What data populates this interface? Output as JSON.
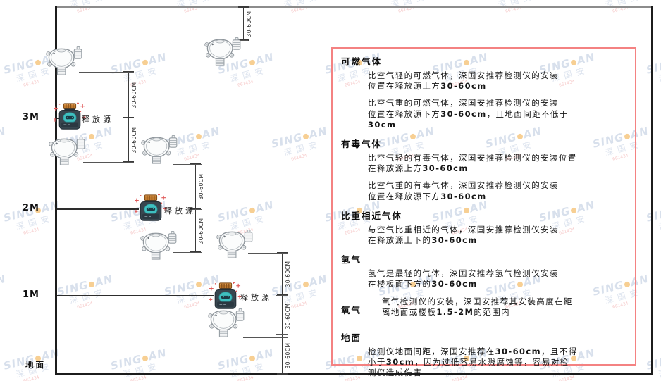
{
  "diagram": {
    "axis_labels": {
      "m3": "3M",
      "m2": "2M",
      "m1": "1M"
    },
    "ground_label": "地面",
    "source_label": "释放源",
    "dim_label": "30-60CM"
  },
  "watermark": {
    "brand_left": "SING",
    "brand_right": "AN",
    "cjk": "深国安",
    "code": "661434"
  },
  "panel": {
    "sections": [
      {
        "heading": "可燃气体",
        "paragraphs": [
          {
            "lines": [
              [
                {
                  "t": "比空气轻的可燃气体，深国安推荐检测仪的安装"
                }
              ],
              [
                {
                  "t": "位置在释放源上方"
                },
                {
                  "t": "30-60cm",
                  "b": true
                }
              ]
            ]
          },
          {
            "lines": [
              [
                {
                  "t": "比空气重的可燃气体，深国安推荐检测仪的安装"
                }
              ],
              [
                {
                  "t": "位置在释放源下方"
                },
                {
                  "t": "30-60cm",
                  "b": true
                },
                {
                  "t": "，且地面间距不低于"
                }
              ],
              [
                {
                  "t": "30cm",
                  "b": true
                }
              ]
            ]
          }
        ]
      },
      {
        "heading": "有毒气体",
        "paragraphs": [
          {
            "lines": [
              [
                {
                  "t": "比空气轻的有毒气体，深国安推荐检测仪的安装位置"
                }
              ],
              [
                {
                  "t": "在释放源上方"
                },
                {
                  "t": "30-60cm",
                  "b": true
                }
              ]
            ]
          },
          {
            "lines": [
              [
                {
                  "t": "比空气重的有毒气体，深国安推荐检测仪的安装"
                }
              ],
              [
                {
                  "t": "位置在释放源下方"
                },
                {
                  "t": "30-60cm",
                  "b": true
                }
              ]
            ]
          }
        ]
      },
      {
        "heading": "比重相近气体",
        "paragraphs": [
          {
            "lines": [
              [
                {
                  "t": "与空气比重相近的气体，深国安推荐检测仪安装"
                }
              ],
              [
                {
                  "t": "在释放源上下的"
                },
                {
                  "t": "30-60cm",
                  "b": true
                }
              ]
            ]
          }
        ]
      },
      {
        "heading": "氢气",
        "paragraphs": [
          {
            "lines": [
              [
                {
                  "t": "氢气是最轻的气体，深国安推荐氢气检测仪安装"
                }
              ],
              [
                {
                  "t": "在楼板面下方的"
                },
                {
                  "t": "30-60cm",
                  "b": true
                }
              ]
            ]
          }
        ]
      },
      {
        "heading": "氧气",
        "inline": true,
        "paragraphs": [
          {
            "lines": [
              [
                {
                  "t": "氧气检测仪的安装，深国安推荐其安装高度在距"
                }
              ],
              [
                {
                  "t": "离地面或楼板"
                },
                {
                  "t": "1.5-2M",
                  "b": true
                },
                {
                  "t": "的范围内"
                }
              ]
            ]
          }
        ]
      },
      {
        "heading": "地面",
        "paragraphs": [
          {
            "lines": [
              [
                {
                  "t": "检测仪地面间距，深国安推荐在"
                },
                {
                  "t": "30-60cm",
                  "b": true
                },
                {
                  "t": "，且不得"
                }
              ],
              [
                {
                  "t": "小于"
                },
                {
                  "t": "30cm",
                  "b": true
                },
                {
                  "t": "，因为过低容易水溅腐蚀等，容易对检"
                }
              ],
              [
                {
                  "t": "测仪造成伤害"
                }
              ]
            ]
          }
        ]
      }
    ]
  }
}
